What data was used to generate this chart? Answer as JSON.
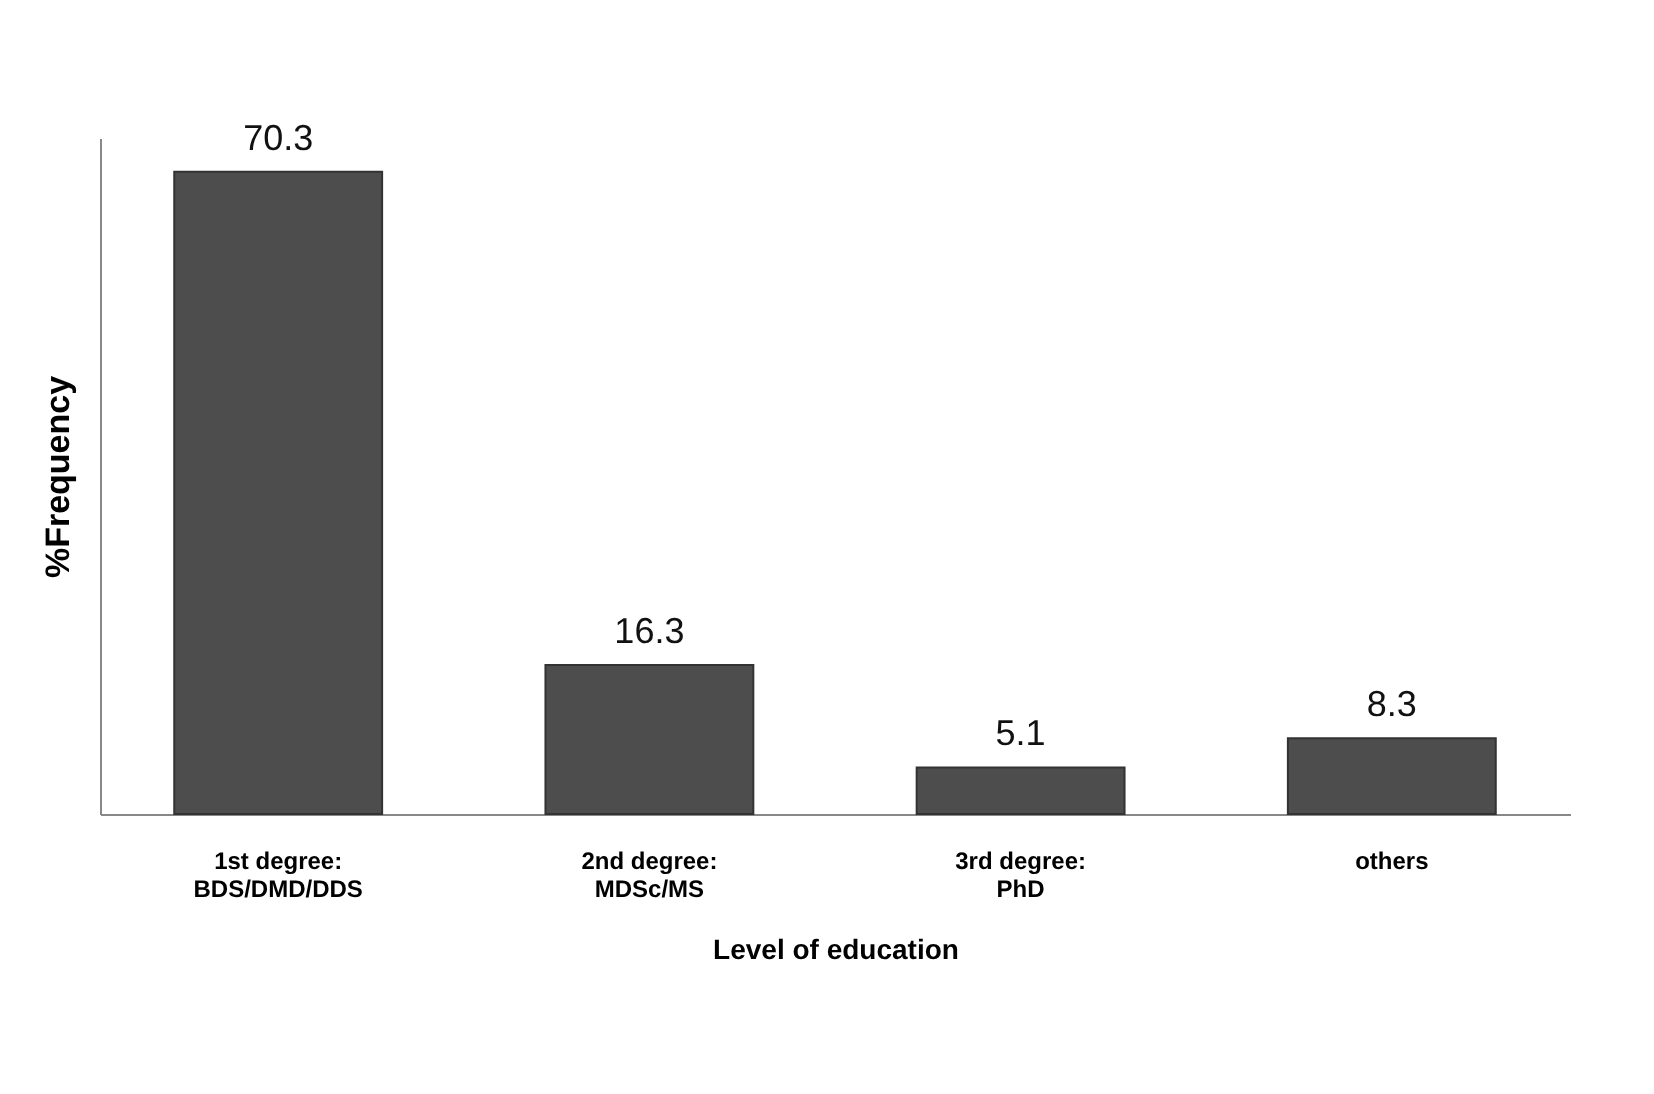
{
  "chart_data": {
    "type": "bar",
    "xlabel": "Level of education",
    "ylabel": "%Frequency",
    "categories": [
      "1st degree:\nBDS/DMD/DDS",
      "2nd degree:\nMDSc/MS",
      "3rd degree:\nPhD",
      "others"
    ],
    "values": [
      70.3,
      16.3,
      5.1,
      8.3
    ],
    "color": "#4d4d4d",
    "ylim": [
      0,
      74
    ],
    "data_labels": true
  }
}
